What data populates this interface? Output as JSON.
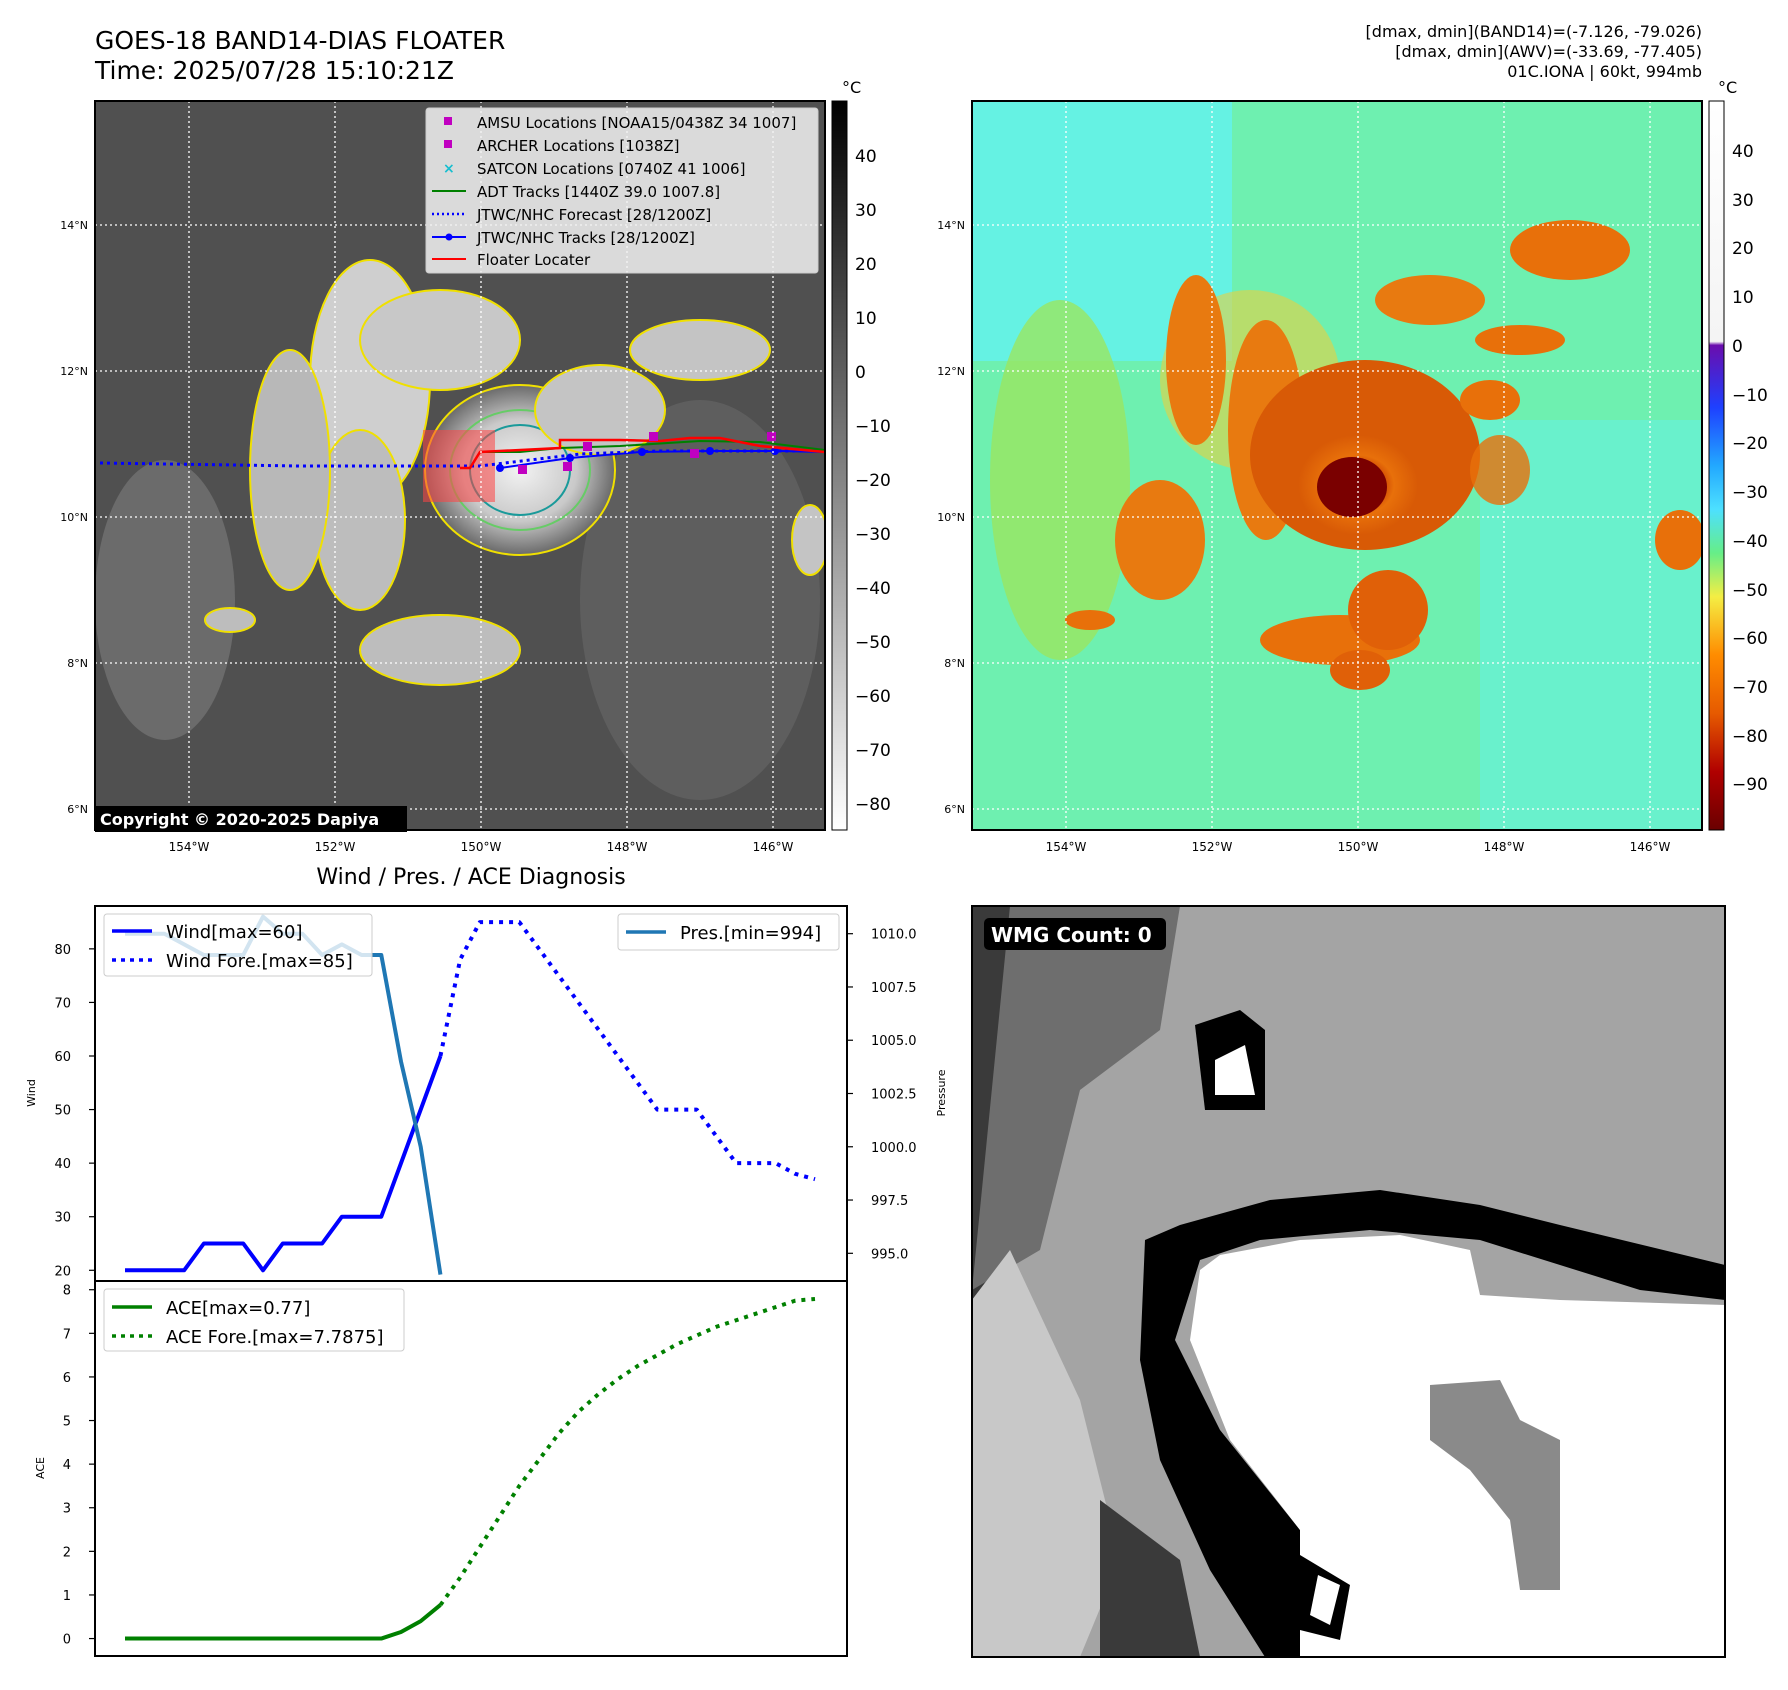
{
  "header": {
    "title_line1": "GOES-18 BAND14-DIAS FLOATER",
    "title_line2": "Time: 2025/07/28 15:10:21Z",
    "info_line1": "[dmax, dmin](BAND14)=(-7.126, -79.026)",
    "info_line2": "[dmax, dmin](AWV)=(-33.69, -77.405)",
    "info_line3": "01C.IONA | 60kt, 994mb"
  },
  "maps": {
    "lat_ticks": [
      "14°N",
      "12°N",
      "10°N",
      "8°N",
      "6°N"
    ],
    "lon_ticks": [
      "154°W",
      "152°W",
      "150°W",
      "148°W",
      "146°W"
    ],
    "copyright": "Copyright © 2020-2025 Dapiya",
    "colorbar_unit": "°C",
    "left_colorbar_ticks": [
      "40",
      "30",
      "20",
      "10",
      "0",
      "−10",
      "−20",
      "−30",
      "−40",
      "−50",
      "−60",
      "−70",
      "−80"
    ],
    "right_colorbar_ticks": [
      "40",
      "30",
      "20",
      "10",
      "0",
      "−10",
      "−20",
      "−30",
      "−40",
      "−50",
      "−60",
      "−70",
      "−80",
      "−90"
    ],
    "legend": [
      {
        "label": "AMSU Locations [NOAA15/0438Z 34 1007]",
        "marker": "square",
        "color": "#c000c0"
      },
      {
        "label": "ARCHER Locations [1038Z]",
        "marker": "square",
        "color": "#c000c0"
      },
      {
        "label": "SATCON Locations [0740Z 41 1006]",
        "marker": "x",
        "color": "#17becf"
      },
      {
        "label": "ADT Tracks [1440Z 39.0 1007.8]",
        "marker": "line",
        "color": "#008000"
      },
      {
        "label": "JTWC/NHC Forecast [28/1200Z]",
        "marker": "dotted",
        "color": "#0000ff"
      },
      {
        "label": "JTWC/NHC Tracks [28/1200Z]",
        "marker": "line-dot",
        "color": "#0000ff"
      },
      {
        "label": "Floater Locater",
        "marker": "line",
        "color": "#ff0000"
      }
    ]
  },
  "diag_title": "Wind / Pres. / ACE Diagnosis",
  "wmg_label": "WMG Count: 0",
  "chart_data": [
    {
      "type": "line",
      "title": "Wind / Pres. / ACE Diagnosis",
      "ylabel": "Wind",
      "y2label": "Pressure",
      "ylim": [
        18,
        88
      ],
      "y2lim": [
        993.7,
        1011.3
      ],
      "y_ticks": [
        "80",
        "70",
        "60",
        "50",
        "40",
        "30",
        "20"
      ],
      "y2_ticks": [
        "1010.0",
        "1007.5",
        "1005.0",
        "1002.5",
        "1000.0",
        "997.5",
        "995.0"
      ],
      "series": [
        {
          "name": "Wind[max=60]",
          "style": "solid",
          "color": "#0000ff",
          "axis": "left",
          "x": [
            0,
            1,
            2,
            3,
            4,
            5,
            6,
            7,
            8,
            9,
            10,
            11,
            12,
            13,
            14,
            15,
            16
          ],
          "values": [
            20,
            20,
            20,
            20,
            25,
            25,
            25,
            20,
            25,
            25,
            25,
            30,
            30,
            30,
            40,
            50,
            60
          ]
        },
        {
          "name": "Wind Fore.[max=85]",
          "style": "dotted",
          "color": "#0000ff",
          "axis": "left",
          "x": [
            16,
            17,
            18,
            19,
            20,
            21,
            22,
            23,
            24,
            25,
            26,
            27,
            28,
            29,
            30,
            31,
            32,
            33,
            34,
            35
          ],
          "values": [
            60,
            78,
            85,
            85,
            85,
            80,
            75,
            70,
            65,
            60,
            55,
            50,
            50,
            50,
            45,
            40,
            40,
            40,
            38,
            37
          ]
        },
        {
          "name": "Pres.[min=994]",
          "style": "solid",
          "color": "#1f77b4",
          "axis": "right",
          "x": [
            0,
            1,
            2,
            3,
            4,
            5,
            6,
            7,
            8,
            9,
            10,
            11,
            12,
            13,
            14,
            15,
            16
          ],
          "values": [
            1010,
            1010,
            1010,
            1009.5,
            1009,
            1009,
            1009,
            1010.8,
            1010,
            1010,
            1009,
            1009.5,
            1009,
            1009,
            1004,
            1000,
            994
          ]
        }
      ]
    },
    {
      "type": "line",
      "ylabel": "ACE",
      "ylim": [
        -0.4,
        8.2
      ],
      "y_ticks": [
        "8",
        "7",
        "6",
        "5",
        "4",
        "3",
        "2",
        "1",
        "0"
      ],
      "series": [
        {
          "name": "ACE[max=0.77]",
          "style": "solid",
          "color": "#008000",
          "x": [
            0,
            1,
            2,
            3,
            4,
            5,
            6,
            7,
            8,
            9,
            10,
            11,
            12,
            13,
            14,
            15,
            16
          ],
          "values": [
            0,
            0,
            0,
            0,
            0,
            0,
            0,
            0,
            0,
            0,
            0,
            0,
            0,
            0,
            0.15,
            0.4,
            0.77
          ]
        },
        {
          "name": "ACE Fore.[max=7.7875]",
          "style": "dotted",
          "color": "#008000",
          "x": [
            16,
            17,
            18,
            19,
            20,
            21,
            22,
            23,
            24,
            25,
            26,
            27,
            28,
            29,
            30,
            31,
            32,
            33,
            34,
            35
          ],
          "values": [
            0.77,
            1.4,
            2.1,
            2.8,
            3.5,
            4.1,
            4.7,
            5.2,
            5.6,
            5.95,
            6.25,
            6.5,
            6.75,
            6.95,
            7.15,
            7.3,
            7.45,
            7.6,
            7.75,
            7.7875
          ]
        }
      ]
    }
  ]
}
